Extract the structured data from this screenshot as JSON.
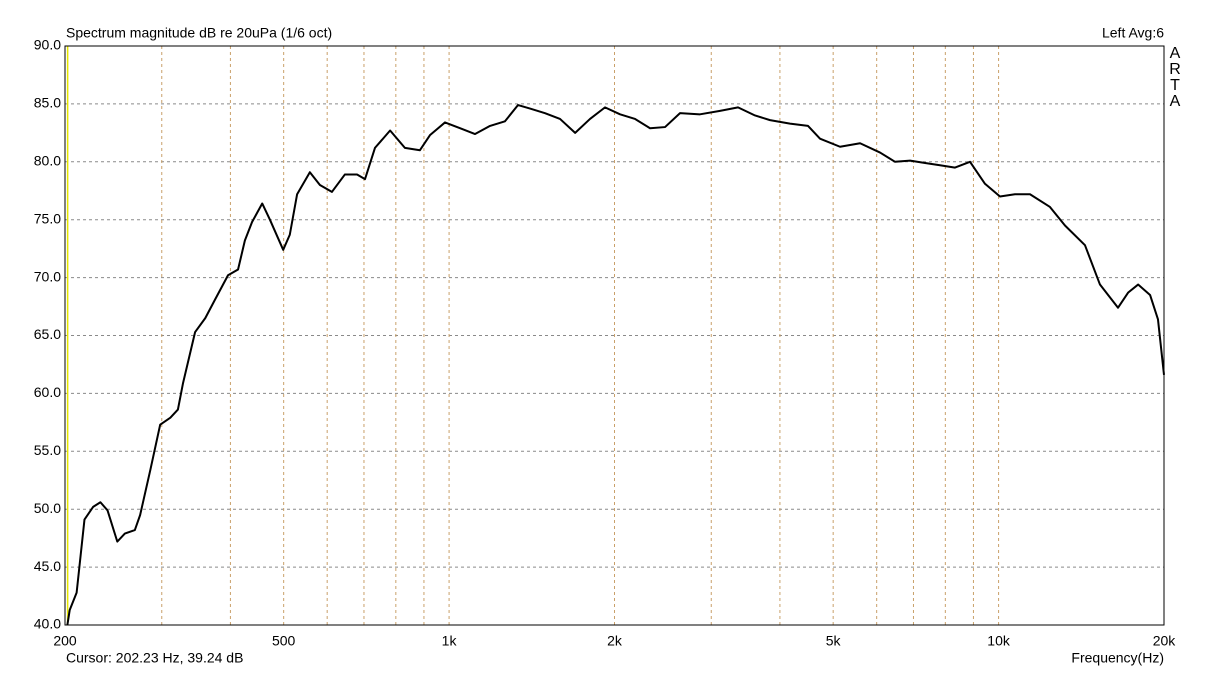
{
  "chart_data": {
    "type": "line",
    "title": "Spectrum magnitude dB re 20uPa (1/6 oct)",
    "channel_label": "Left  Avg:6",
    "side_label": "ARTA",
    "x_label": "Frequency(Hz)",
    "cursor_text": "Cursor:   202.23 Hz, 39.24 dB",
    "cursor_x": 202.23,
    "cursor_color": "#e6e600",
    "xscale": "log",
    "grid": true,
    "xlim": [
      200,
      20000
    ],
    "ylim": [
      40,
      90
    ],
    "xticks": [
      200,
      500,
      {
        "value": 1000,
        "label": "1k"
      },
      {
        "value": 2000,
        "label": "2k"
      },
      {
        "value": 5000,
        "label": "5k"
      },
      {
        "value": 10000,
        "label": "10k"
      },
      {
        "value": 20000,
        "label": "20k"
      }
    ],
    "x_minor_ticks": [
      300,
      400,
      500,
      600,
      700,
      800,
      900,
      1000,
      2000,
      3000,
      4000,
      5000,
      6000,
      7000,
      8000,
      9000,
      10000
    ],
    "yticks": [
      {
        "value": 40,
        "label": "40.0"
      },
      {
        "value": 45,
        "label": "45.0"
      },
      {
        "value": 50,
        "label": "50.0"
      },
      {
        "value": 55,
        "label": "55.0"
      },
      {
        "value": 60,
        "label": "60.0"
      },
      {
        "value": 65,
        "label": "65.0"
      },
      {
        "value": 70,
        "label": "70.0"
      },
      {
        "value": 75,
        "label": "75.0"
      },
      {
        "value": 80,
        "label": "80.0"
      },
      {
        "value": 85,
        "label": "85.0"
      },
      {
        "value": 90,
        "label": "90.0"
      }
    ],
    "x": [
      202,
      204,
      210,
      217,
      225,
      232,
      239,
      249,
      257,
      268,
      274,
      286,
      298,
      311,
      321,
      328,
      345,
      360,
      375,
      396,
      413,
      425,
      438,
      457,
      472,
      499,
      513,
      529,
      558,
      582,
      612,
      646,
      680,
      703,
      733,
      781,
      831,
      885,
      923,
      983,
      1047,
      1115,
      1187,
      1264,
      1335,
      1404,
      1495,
      1592,
      1696,
      1805,
      1922,
      2047,
      2180,
      2321,
      2472,
      2632,
      2862,
      3112,
      3356,
      3604,
      3837,
      4172,
      4500,
      4732,
      5146,
      5597,
      6086,
      6480,
      6901,
      7349,
      7823,
      8331,
      8872,
      9446,
      10059,
      10710,
      11407,
      12402,
      13208,
      14362,
      15293,
      16496,
      17205,
      17944,
      18866,
      19500,
      20000
    ],
    "series": [
      {
        "name": "Left",
        "color": "#000000",
        "values": [
          40,
          41.3,
          42.8,
          49.1,
          50.2,
          50.6,
          49.9,
          47.2,
          47.9,
          48.2,
          49.5,
          53.4,
          57.3,
          57.9,
          58.6,
          60.9,
          65.3,
          66.5,
          68.1,
          70.2,
          70.7,
          73.2,
          74.8,
          76.4,
          75.0,
          72.4,
          73.7,
          77.2,
          79.1,
          78.0,
          77.4,
          78.9,
          78.9,
          78.5,
          81.2,
          82.7,
          81.2,
          81.0,
          82.3,
          83.4,
          82.9,
          82.4,
          83.1,
          83.5,
          84.9,
          84.6,
          84.2,
          83.7,
          82.5,
          83.7,
          84.7,
          84.1,
          83.7,
          82.9,
          83.0,
          84.2,
          84.1,
          84.4,
          84.7,
          84.0,
          83.6,
          83.3,
          83.1,
          82.0,
          81.3,
          81.6,
          80.8,
          80.0,
          80.1,
          79.9,
          79.7,
          79.5,
          80.0,
          78.1,
          77.0,
          77.2,
          77.2,
          76.1,
          74.5,
          72.8,
          69.4,
          67.4,
          68.7,
          69.4,
          68.5,
          66.4,
          61.6
        ]
      }
    ]
  }
}
